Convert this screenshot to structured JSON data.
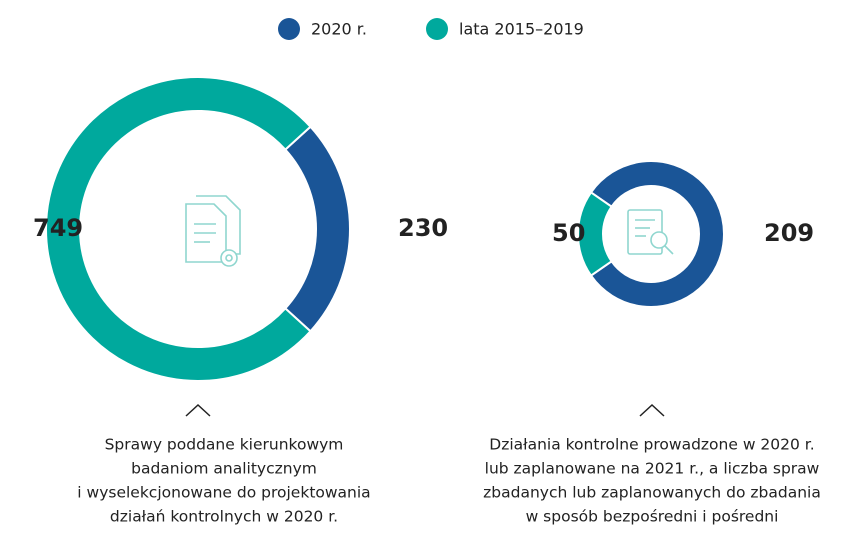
{
  "legend": {
    "items": [
      {
        "name": "2020 r.",
        "color": "#1a5597"
      },
      {
        "name": "lata 2015–2019",
        "color": "#00a99d"
      }
    ]
  },
  "chart_data": [
    {
      "type": "donut",
      "values": [
        230,
        749
      ],
      "caption": [
        "Sprawy poddane kierunkowym",
        "badaniom analitycznym",
        "i wyselekcjonowane do projektowania",
        "działań kontrolnych w 2020 r."
      ]
    },
    {
      "type": "donut",
      "values": [
        209,
        50
      ],
      "caption": [
        "Działania kontrolne prowadzone w 2020 r.",
        "lub zaplanowane na 2021 r., a liczba spraw",
        "zbadanych lub zaplanowanych do zbadania",
        "w sposób bezpośredni i pośredni"
      ]
    }
  ]
}
